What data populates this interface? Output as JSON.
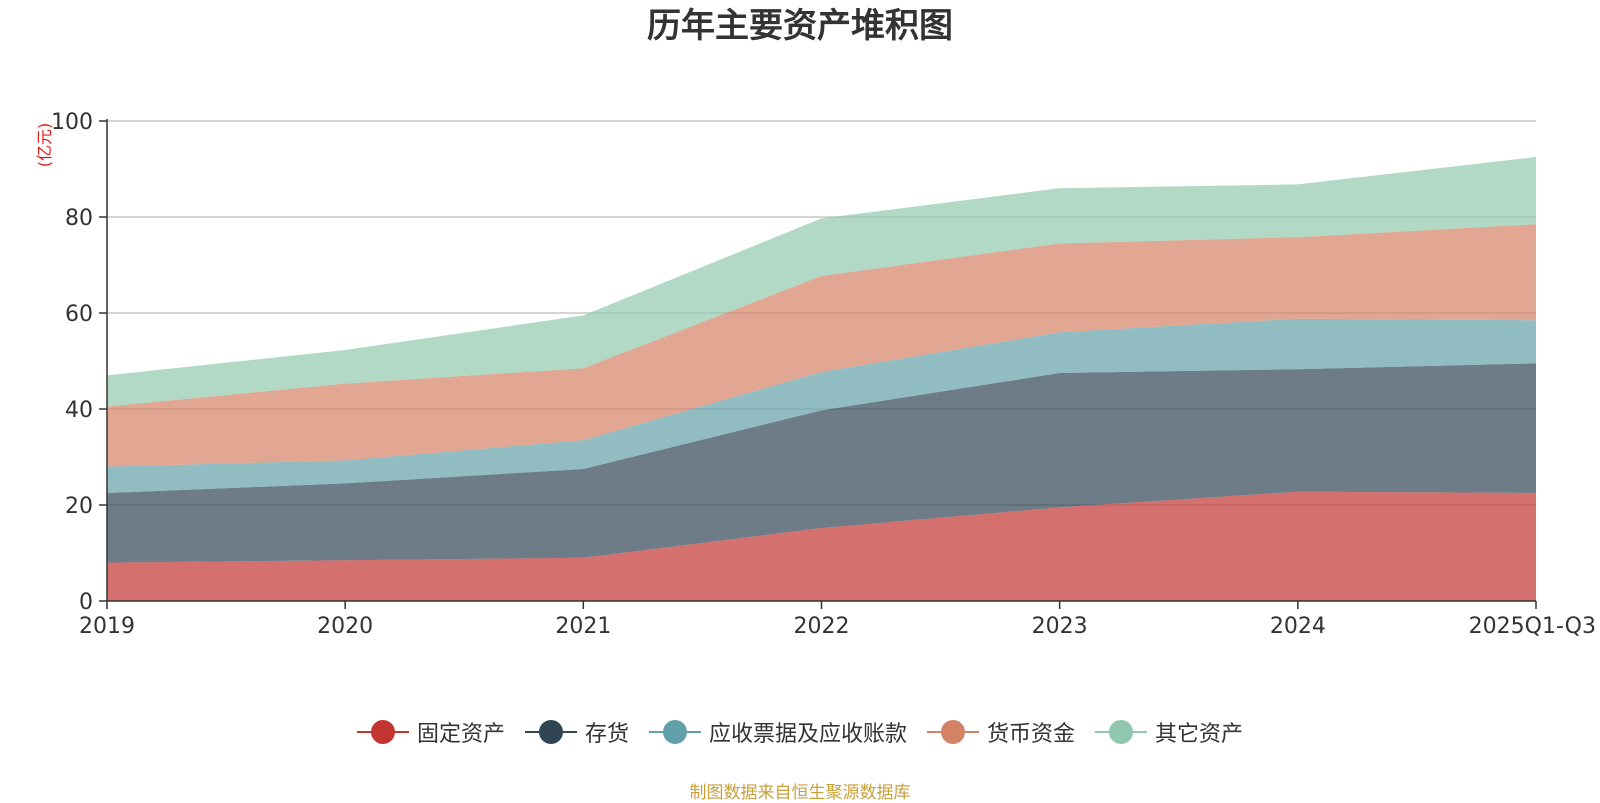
{
  "chart_data": {
    "type": "area",
    "stacked": true,
    "title": "历年主要资产堆积图",
    "ylabel": "(亿元)",
    "xlabel": "",
    "ylim": [
      0,
      100
    ],
    "yticks": [
      0,
      20,
      40,
      60,
      80,
      100
    ],
    "categories": [
      "2019",
      "2020",
      "2021",
      "2022",
      "2023",
      "2024",
      "2025Q1-Q3"
    ],
    "series": [
      {
        "name": "固定资产",
        "color": "#c23531",
        "values": [
          8,
          8.5,
          9,
          15.2,
          19.5,
          22.8,
          22.5
        ]
      },
      {
        "name": "存货",
        "color": "#2f4554",
        "values": [
          14.5,
          16,
          18.5,
          24.5,
          28,
          25.5,
          27
        ]
      },
      {
        "name": "应收票据及应收账款",
        "color": "#61a0a8",
        "values": [
          5.5,
          4.8,
          6,
          8,
          8.5,
          10.5,
          9
        ]
      },
      {
        "name": "货币资金",
        "color": "#d48265",
        "values": [
          12.5,
          16,
          15,
          20,
          18.5,
          17,
          20
        ]
      },
      {
        "name": "其它资产",
        "color": "#91c7ae",
        "values": [
          6.5,
          7,
          11,
          12,
          11.5,
          11,
          14
        ]
      }
    ],
    "legend_position": "bottom",
    "grid": true
  },
  "footer": {
    "source_note": "制图数据来自恒生聚源数据库"
  }
}
